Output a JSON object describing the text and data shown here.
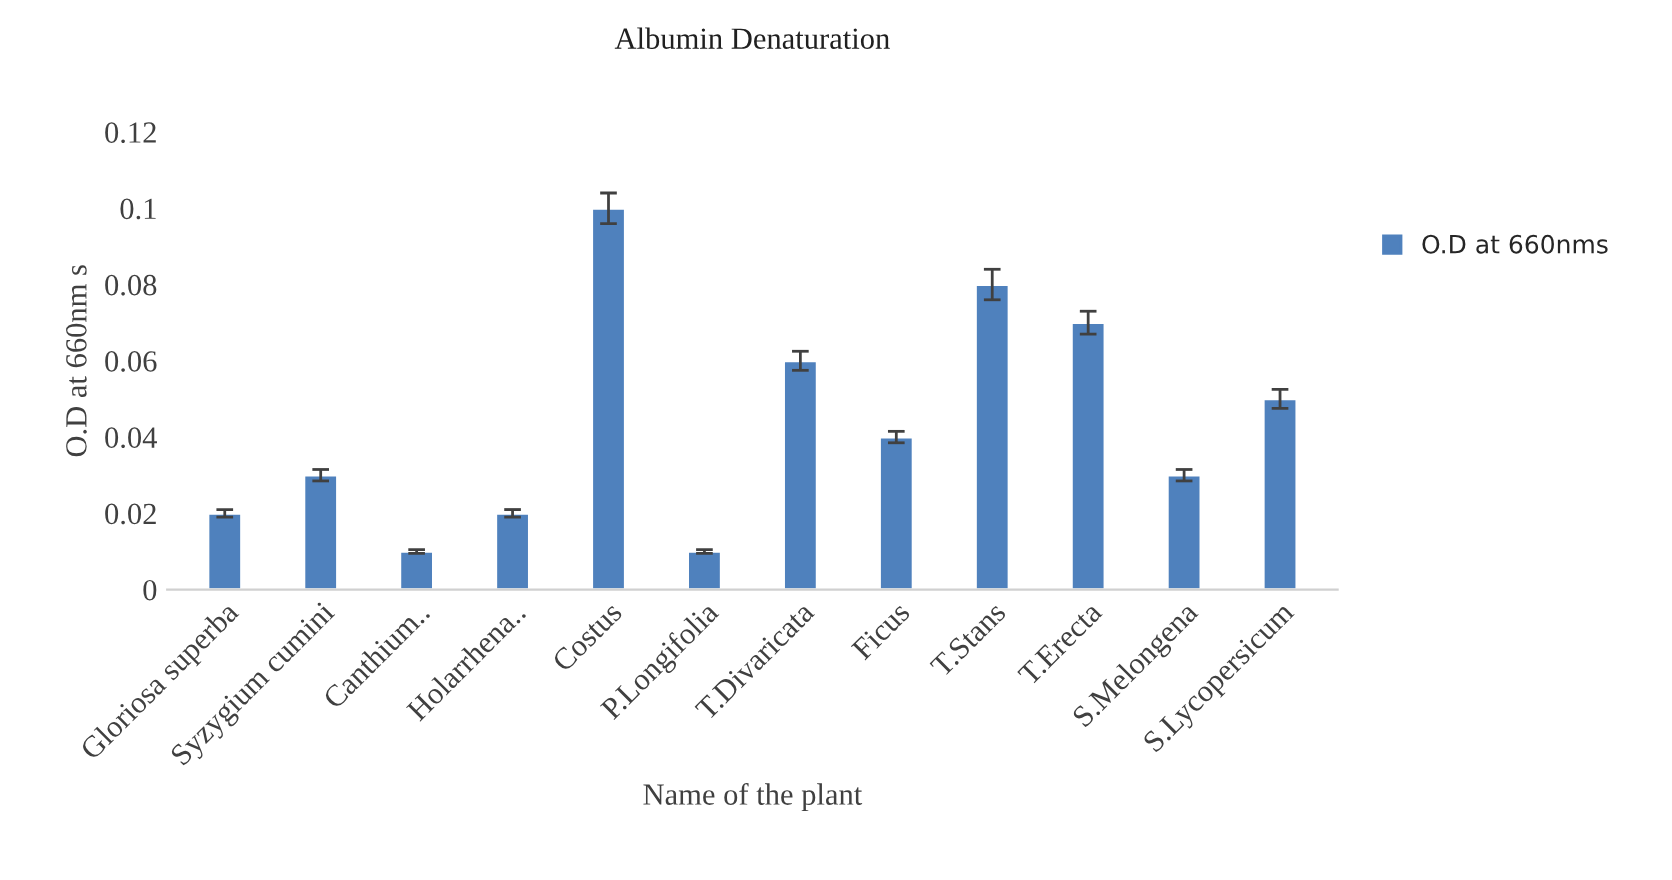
{
  "chart_data": {
    "type": "bar",
    "title": "Albumin Denaturation",
    "xlabel": "Name of the plant",
    "ylabel": "O.D at 660nm s",
    "categories": [
      "Gloriosa superba",
      "Syzygium cumini",
      "Canthium..",
      "Holarrhena..",
      "Costus",
      "P.Longifolia",
      "T.Divaricata",
      "Ficus",
      "T.Stans",
      "T.Erecta",
      "S.Melongena",
      "S.Lycopersicum"
    ],
    "series": [
      {
        "name": "O.D at 660nms",
        "color": "#4f81bd",
        "values": [
          0.02,
          0.03,
          0.01,
          0.02,
          0.1,
          0.01,
          0.06,
          0.04,
          0.08,
          0.07,
          0.03,
          0.05
        ],
        "errors": [
          0.001,
          0.0015,
          0.0005,
          0.001,
          0.004,
          0.0005,
          0.0025,
          0.0015,
          0.004,
          0.003,
          0.0015,
          0.0025
        ]
      }
    ],
    "ylim": [
      0,
      0.12
    ],
    "yticks": [
      0,
      0.02,
      0.04,
      0.06,
      0.08,
      0.1,
      0.12
    ],
    "grid": false,
    "legend": "right"
  }
}
